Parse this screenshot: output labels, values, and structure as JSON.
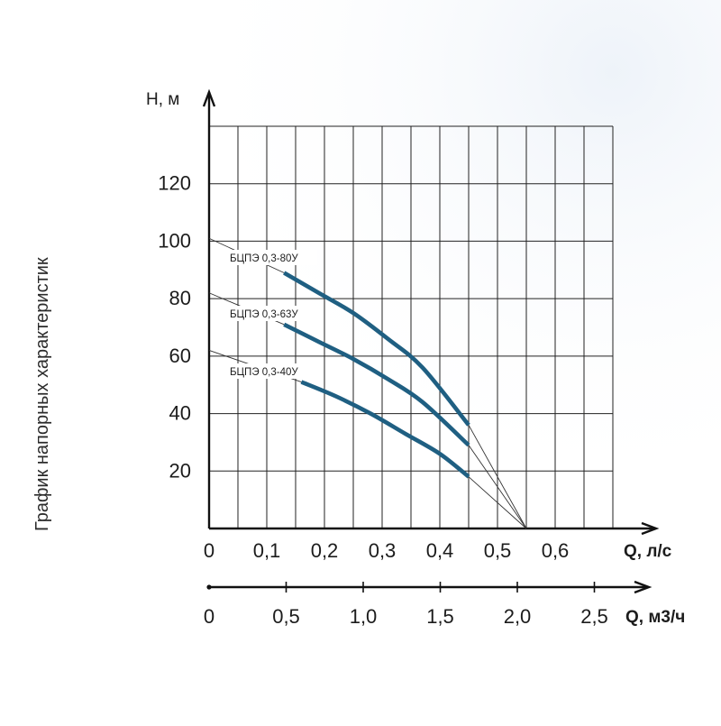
{
  "chart_data": {
    "type": "line",
    "title": "График напорных характеристик",
    "ylabel": "H, м",
    "xlabel": "Q, л/с",
    "xlabel2": "Q, м3/ч",
    "ylim": [
      0,
      140
    ],
    "xlim": [
      0,
      0.7
    ],
    "x_ticks": [
      {
        "v": 0,
        "label": "0"
      },
      {
        "v": 0.1,
        "label": "0,1"
      },
      {
        "v": 0.2,
        "label": "0,2"
      },
      {
        "v": 0.3,
        "label": "0,3"
      },
      {
        "v": 0.4,
        "label": "0,4"
      },
      {
        "v": 0.5,
        "label": "0,5"
      },
      {
        "v": 0.6,
        "label": "0,6"
      }
    ],
    "x2_ticks": [
      {
        "v": 0,
        "label": "0"
      },
      {
        "v": 0.5,
        "label": "0,5"
      },
      {
        "v": 1.0,
        "label": "1,0"
      },
      {
        "v": 1.5,
        "label": "1,5"
      },
      {
        "v": 2.0,
        "label": "2,0"
      },
      {
        "v": 2.5,
        "label": "2,5"
      }
    ],
    "y_ticks": [
      {
        "v": 20,
        "label": "20"
      },
      {
        "v": 40,
        "label": "40"
      },
      {
        "v": 60,
        "label": "60"
      },
      {
        "v": 80,
        "label": "80"
      },
      {
        "v": 100,
        "label": "100"
      },
      {
        "v": 120,
        "label": "120"
      }
    ],
    "grid": true,
    "curve_color": "#1f5f82",
    "thin_color": "#333333",
    "series": [
      {
        "name": "БЦПЭ 0,3-80У",
        "points": [
          [
            0.13,
            89
          ],
          [
            0.19,
            82
          ],
          [
            0.25,
            75
          ],
          [
            0.31,
            66
          ],
          [
            0.37,
            56
          ],
          [
            0.45,
            36
          ]
        ],
        "zero_head": 101,
        "shutoff_q": 0.55
      },
      {
        "name": "БЦПЭ 0,3-63У",
        "points": [
          [
            0.13,
            71
          ],
          [
            0.19,
            65
          ],
          [
            0.25,
            59
          ],
          [
            0.31,
            52
          ],
          [
            0.37,
            44
          ],
          [
            0.45,
            29
          ]
        ],
        "zero_head": 82,
        "shutoff_q": 0.55
      },
      {
        "name": "БЦПЭ 0,3-40У",
        "points": [
          [
            0.16,
            51
          ],
          [
            0.22,
            46
          ],
          [
            0.28,
            40
          ],
          [
            0.34,
            33
          ],
          [
            0.4,
            26
          ],
          [
            0.45,
            18
          ]
        ],
        "zero_head": 62,
        "shutoff_q": 0.55
      }
    ]
  }
}
